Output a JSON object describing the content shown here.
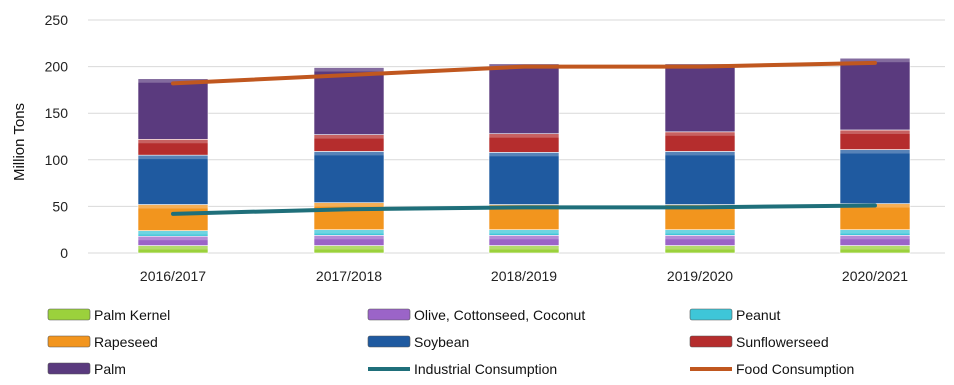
{
  "chart_data": {
    "type": "bar",
    "stacked": true,
    "categories": [
      "2016/2017",
      "2017/2018",
      "2018/2019",
      "2019/2020",
      "2020/2021"
    ],
    "ylabel": "Million Tons",
    "xlabel": "",
    "title": "",
    "ylim": [
      0,
      250
    ],
    "yticks": [
      0,
      50,
      100,
      150,
      200,
      250
    ],
    "grid": true,
    "legend_position": "bottom",
    "series": [
      {
        "name": "Palm Kernel",
        "type": "bar",
        "color": "#9bd13c",
        "values": [
          8,
          8,
          8,
          8,
          8
        ]
      },
      {
        "name": "Olive, Cottonseed, Coconut",
        "type": "bar",
        "color": "#9b64c8",
        "values": [
          10,
          11,
          11,
          11,
          11
        ]
      },
      {
        "name": "Peanut",
        "type": "bar",
        "color": "#3ec6d8",
        "values": [
          6,
          6,
          6,
          6,
          6
        ]
      },
      {
        "name": "Rapeseed",
        "type": "bar",
        "color": "#f2951e",
        "values": [
          28,
          29,
          27,
          27,
          28
        ]
      },
      {
        "name": "Soybean",
        "type": "bar",
        "color": "#1f5aa0",
        "values": [
          53,
          55,
          56,
          57,
          58
        ]
      },
      {
        "name": "Sunflowerseed",
        "type": "bar",
        "color": "#b52d2d",
        "values": [
          17,
          18,
          20,
          21,
          21
        ]
      },
      {
        "name": "Palm",
        "type": "bar",
        "color": "#5a3a7e",
        "values": [
          65,
          72,
          75,
          73,
          77
        ]
      },
      {
        "name": "Industrial Consumption",
        "type": "line",
        "color": "#1f6f7a",
        "values": [
          42,
          47,
          49,
          49,
          51
        ]
      },
      {
        "name": "Food Consumption",
        "type": "line",
        "color": "#c0571f",
        "values": [
          182,
          191,
          200,
          200,
          204
        ]
      }
    ]
  }
}
